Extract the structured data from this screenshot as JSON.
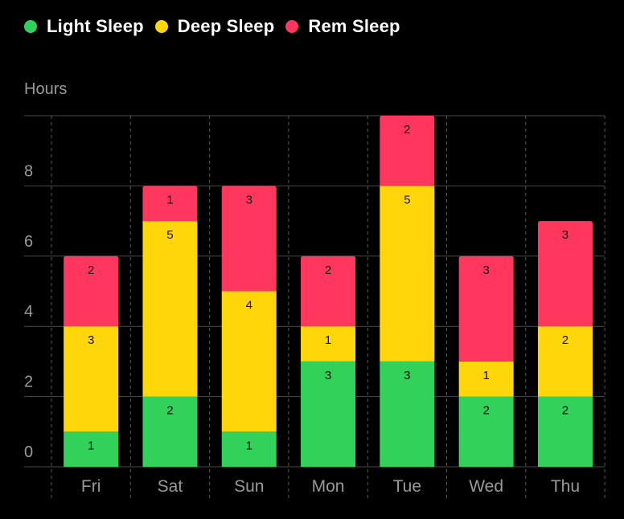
{
  "legend": [
    {
      "label": "Light Sleep",
      "color": "#32d15a"
    },
    {
      "label": "Deep Sleep",
      "color": "#ffd60a"
    },
    {
      "label": "Rem Sleep",
      "color": "#ff375f"
    }
  ],
  "chart_data": {
    "type": "bar",
    "stacked": true,
    "ylabel": "Hours",
    "ylim": [
      0,
      10
    ],
    "y_ticks": [
      0,
      2,
      4,
      6,
      8
    ],
    "categories": [
      "Fri",
      "Sat",
      "Sun",
      "Mon",
      "Tue",
      "Wed",
      "Thu"
    ],
    "series": [
      {
        "name": "Light Sleep",
        "color": "#32d15a",
        "values": [
          1,
          2,
          1,
          3,
          3,
          2,
          2
        ]
      },
      {
        "name": "Deep Sleep",
        "color": "#ffd60a",
        "values": [
          3,
          5,
          4,
          1,
          5,
          1,
          2
        ]
      },
      {
        "name": "Rem Sleep",
        "color": "#ff375f",
        "values": [
          2,
          1,
          3,
          2,
          2,
          3,
          3
        ]
      }
    ],
    "grid": true,
    "legend_position": "top-left"
  }
}
